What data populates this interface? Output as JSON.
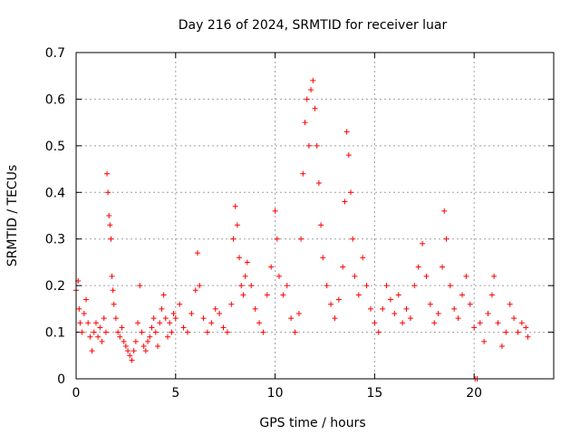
{
  "chart_data": {
    "type": "scatter",
    "title": "Day 216 of 2024, SRMTID for receiver luar",
    "xlabel": "GPS time / hours",
    "ylabel": "SRMTID / TECUs",
    "xlim": [
      0,
      24
    ],
    "ylim": [
      0,
      0.7
    ],
    "xticks": [
      0,
      5,
      10,
      15,
      20
    ],
    "yticks": [
      0,
      0.1,
      0.2,
      0.3,
      0.4,
      0.5,
      0.6,
      0.7
    ],
    "xtick_labels": [
      "0",
      "5",
      "10",
      "15",
      "20"
    ],
    "ytick_labels": [
      "0",
      "0.1",
      "0.2",
      "0.3",
      "0.4",
      "0.5",
      "0.6",
      "0.7"
    ],
    "grid": true,
    "marker": "+",
    "color": "#ff0000",
    "series": [
      {
        "name": "SRMTID",
        "points": [
          [
            0.0,
            0.19
          ],
          [
            0.1,
            0.21
          ],
          [
            0.15,
            0.15
          ],
          [
            0.2,
            0.12
          ],
          [
            0.3,
            0.1
          ],
          [
            0.4,
            0.14
          ],
          [
            0.5,
            0.17
          ],
          [
            0.6,
            0.12
          ],
          [
            0.7,
            0.09
          ],
          [
            0.8,
            0.06
          ],
          [
            0.9,
            0.1
          ],
          [
            1.0,
            0.12
          ],
          [
            1.1,
            0.09
          ],
          [
            1.2,
            0.11
          ],
          [
            1.3,
            0.08
          ],
          [
            1.4,
            0.13
          ],
          [
            1.5,
            0.1
          ],
          [
            1.55,
            0.44
          ],
          [
            1.6,
            0.4
          ],
          [
            1.65,
            0.35
          ],
          [
            1.7,
            0.33
          ],
          [
            1.75,
            0.3
          ],
          [
            1.8,
            0.22
          ],
          [
            1.85,
            0.19
          ],
          [
            1.9,
            0.16
          ],
          [
            2.0,
            0.13
          ],
          [
            2.1,
            0.1
          ],
          [
            2.2,
            0.09
          ],
          [
            2.3,
            0.11
          ],
          [
            2.4,
            0.08
          ],
          [
            2.5,
            0.07
          ],
          [
            2.6,
            0.06
          ],
          [
            2.7,
            0.05
          ],
          [
            2.8,
            0.04
          ],
          [
            2.9,
            0.06
          ],
          [
            3.0,
            0.08
          ],
          [
            3.1,
            0.12
          ],
          [
            3.2,
            0.2
          ],
          [
            3.3,
            0.1
          ],
          [
            3.4,
            0.07
          ],
          [
            3.5,
            0.06
          ],
          [
            3.6,
            0.08
          ],
          [
            3.7,
            0.09
          ],
          [
            3.8,
            0.11
          ],
          [
            3.9,
            0.13
          ],
          [
            4.0,
            0.1
          ],
          [
            4.1,
            0.07
          ],
          [
            4.2,
            0.12
          ],
          [
            4.3,
            0.15
          ],
          [
            4.4,
            0.18
          ],
          [
            4.5,
            0.13
          ],
          [
            4.6,
            0.09
          ],
          [
            4.7,
            0.12
          ],
          [
            4.8,
            0.1
          ],
          [
            4.9,
            0.14
          ],
          [
            5.0,
            0.13
          ],
          [
            5.2,
            0.16
          ],
          [
            5.4,
            0.11
          ],
          [
            5.6,
            0.1
          ],
          [
            5.8,
            0.14
          ],
          [
            6.0,
            0.19
          ],
          [
            6.1,
            0.27
          ],
          [
            6.2,
            0.2
          ],
          [
            6.4,
            0.13
          ],
          [
            6.6,
            0.1
          ],
          [
            6.8,
            0.12
          ],
          [
            7.0,
            0.15
          ],
          [
            7.2,
            0.14
          ],
          [
            7.4,
            0.11
          ],
          [
            7.6,
            0.1
          ],
          [
            7.8,
            0.16
          ],
          [
            7.9,
            0.3
          ],
          [
            8.0,
            0.37
          ],
          [
            8.1,
            0.33
          ],
          [
            8.2,
            0.26
          ],
          [
            8.3,
            0.2
          ],
          [
            8.4,
            0.18
          ],
          [
            8.5,
            0.22
          ],
          [
            8.6,
            0.25
          ],
          [
            8.8,
            0.2
          ],
          [
            9.0,
            0.15
          ],
          [
            9.2,
            0.12
          ],
          [
            9.4,
            0.1
          ],
          [
            9.6,
            0.18
          ],
          [
            9.8,
            0.24
          ],
          [
            10.0,
            0.36
          ],
          [
            10.1,
            0.3
          ],
          [
            10.2,
            0.22
          ],
          [
            10.4,
            0.18
          ],
          [
            10.6,
            0.2
          ],
          [
            10.8,
            0.13
          ],
          [
            11.0,
            0.1
          ],
          [
            11.2,
            0.14
          ],
          [
            11.3,
            0.3
          ],
          [
            11.4,
            0.44
          ],
          [
            11.5,
            0.55
          ],
          [
            11.6,
            0.6
          ],
          [
            11.7,
            0.5
          ],
          [
            11.8,
            0.62
          ],
          [
            11.9,
            0.64
          ],
          [
            12.0,
            0.58
          ],
          [
            12.1,
            0.5
          ],
          [
            12.2,
            0.42
          ],
          [
            12.3,
            0.33
          ],
          [
            12.4,
            0.26
          ],
          [
            12.6,
            0.2
          ],
          [
            12.8,
            0.16
          ],
          [
            13.0,
            0.13
          ],
          [
            13.2,
            0.17
          ],
          [
            13.4,
            0.24
          ],
          [
            13.5,
            0.38
          ],
          [
            13.6,
            0.53
          ],
          [
            13.7,
            0.48
          ],
          [
            13.8,
            0.4
          ],
          [
            13.9,
            0.3
          ],
          [
            14.0,
            0.22
          ],
          [
            14.2,
            0.18
          ],
          [
            14.4,
            0.26
          ],
          [
            14.6,
            0.2
          ],
          [
            14.8,
            0.15
          ],
          [
            15.0,
            0.12
          ],
          [
            15.2,
            0.1
          ],
          [
            15.4,
            0.15
          ],
          [
            15.6,
            0.2
          ],
          [
            15.8,
            0.17
          ],
          [
            16.0,
            0.14
          ],
          [
            16.2,
            0.18
          ],
          [
            16.4,
            0.12
          ],
          [
            16.6,
            0.15
          ],
          [
            16.8,
            0.13
          ],
          [
            17.0,
            0.2
          ],
          [
            17.2,
            0.24
          ],
          [
            17.4,
            0.29
          ],
          [
            17.6,
            0.22
          ],
          [
            17.8,
            0.16
          ],
          [
            18.0,
            0.12
          ],
          [
            18.2,
            0.14
          ],
          [
            18.4,
            0.24
          ],
          [
            18.5,
            0.36
          ],
          [
            18.6,
            0.3
          ],
          [
            18.8,
            0.2
          ],
          [
            19.0,
            0.15
          ],
          [
            19.2,
            0.13
          ],
          [
            19.4,
            0.18
          ],
          [
            19.6,
            0.22
          ],
          [
            19.8,
            0.16
          ],
          [
            20.0,
            0.11
          ],
          [
            20.05,
            0.0
          ],
          [
            20.15,
            0.0
          ],
          [
            20.3,
            0.12
          ],
          [
            20.5,
            0.08
          ],
          [
            20.7,
            0.14
          ],
          [
            20.9,
            0.18
          ],
          [
            21.0,
            0.22
          ],
          [
            21.2,
            0.12
          ],
          [
            21.4,
            0.07
          ],
          [
            21.6,
            0.1
          ],
          [
            21.8,
            0.16
          ],
          [
            22.0,
            0.13
          ],
          [
            22.2,
            0.1
          ],
          [
            22.4,
            0.12
          ],
          [
            22.6,
            0.11
          ],
          [
            22.7,
            0.09
          ]
        ]
      }
    ]
  }
}
